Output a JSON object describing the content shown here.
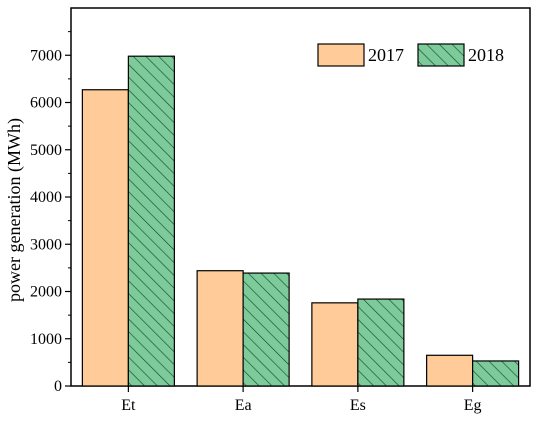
{
  "chart_data": {
    "type": "bar",
    "title": "",
    "xlabel": "",
    "ylabel": "power generation (MWh)",
    "categories": [
      "Et",
      "Ea",
      "Es",
      "Eg"
    ],
    "series": [
      {
        "name": "2017",
        "values": [
          6270,
          2440,
          1760,
          650
        ],
        "color": "#FFCC99",
        "pattern": "solid"
      },
      {
        "name": "2018",
        "values": [
          6980,
          2390,
          1840,
          530
        ],
        "color": "#7DCB9B",
        "pattern": "diagonal-hatch"
      }
    ],
    "ylim": [
      0,
      8000
    ],
    "yticks": [
      0,
      1000,
      2000,
      3000,
      4000,
      5000,
      6000,
      7000
    ],
    "grid": false,
    "legend": {
      "placement": "top-right",
      "orientation": "horizontal"
    }
  }
}
